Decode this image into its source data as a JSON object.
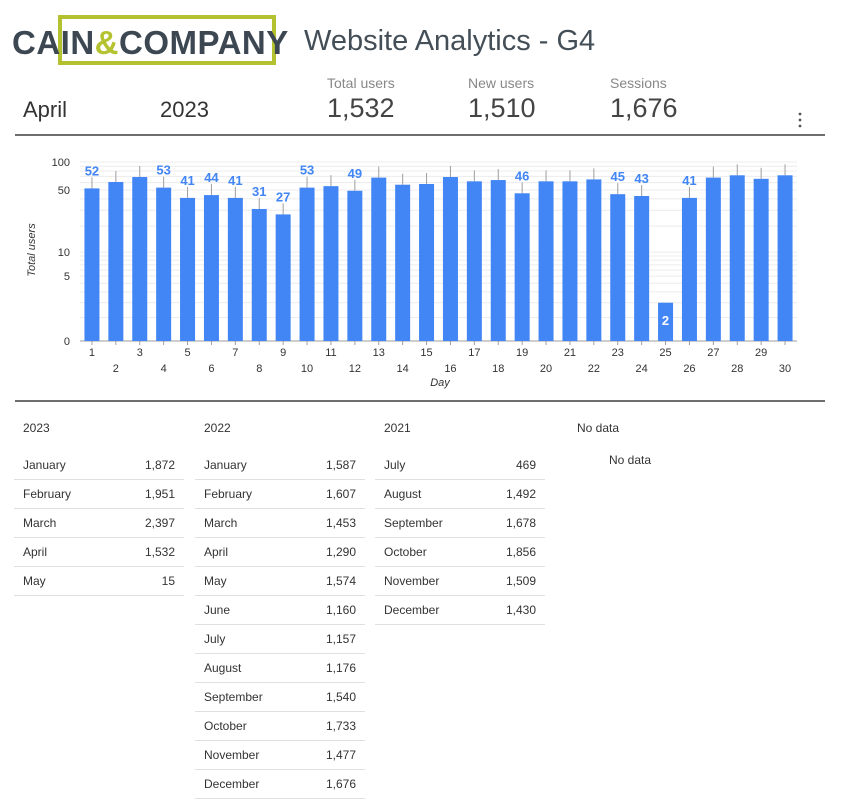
{
  "header": {
    "logo": {
      "part1": "CAIN",
      "amp": "&",
      "part2": "COMPANY"
    },
    "title": "Website Analytics - G4",
    "month": "April",
    "year": "2023"
  },
  "kpis": [
    {
      "label": "Total users",
      "value": "1,532"
    },
    {
      "label": "New users",
      "value": "1,510"
    },
    {
      "label": "Sessions",
      "value": "1,676"
    }
  ],
  "colors": {
    "bar": "#4285f4",
    "label": "#4285f4",
    "logo_green": "#b5c230"
  },
  "chart_data": {
    "type": "bar",
    "xlabel": "Day",
    "ylabel": "Total users",
    "scale": "symlog",
    "yticks": [
      "0",
      "5",
      "10",
      "50",
      "100"
    ],
    "ylim": [
      0,
      100
    ],
    "categories": [
      "1",
      "2",
      "3",
      "4",
      "5",
      "6",
      "7",
      "8",
      "9",
      "10",
      "11",
      "12",
      "13",
      "14",
      "15",
      "16",
      "17",
      "18",
      "19",
      "20",
      "21",
      "22",
      "23",
      "24",
      "25",
      "26",
      "27",
      "28",
      "29",
      "30"
    ],
    "values": [
      52,
      61,
      69,
      53,
      41,
      44,
      41,
      31,
      27,
      53,
      55,
      49,
      68,
      57,
      58,
      69,
      62,
      64,
      46,
      62,
      62,
      65,
      45,
      43,
      2,
      41,
      68,
      72,
      66,
      72
    ],
    "labeled_days": [
      "1",
      "4",
      "5",
      "6",
      "7",
      "8",
      "9",
      "10",
      "12",
      "19",
      "23",
      "24",
      "25",
      "26"
    ],
    "legend": "none"
  },
  "tables": [
    {
      "header": "2023",
      "rows": [
        {
          "month": "January",
          "value": "1,872"
        },
        {
          "month": "February",
          "value": "1,951"
        },
        {
          "month": "March",
          "value": "2,397"
        },
        {
          "month": "April",
          "value": "1,532"
        },
        {
          "month": "May",
          "value": "15"
        }
      ]
    },
    {
      "header": "2022",
      "rows": [
        {
          "month": "January",
          "value": "1,587"
        },
        {
          "month": "February",
          "value": "1,607"
        },
        {
          "month": "March",
          "value": "1,453"
        },
        {
          "month": "April",
          "value": "1,290"
        },
        {
          "month": "May",
          "value": "1,574"
        },
        {
          "month": "June",
          "value": "1,160"
        },
        {
          "month": "July",
          "value": "1,157"
        },
        {
          "month": "August",
          "value": "1,176"
        },
        {
          "month": "September",
          "value": "1,540"
        },
        {
          "month": "October",
          "value": "1,733"
        },
        {
          "month": "November",
          "value": "1,477"
        },
        {
          "month": "December",
          "value": "1,676"
        }
      ]
    },
    {
      "header": "2021",
      "rows": [
        {
          "month": "July",
          "value": "469"
        },
        {
          "month": "August",
          "value": "1,492"
        },
        {
          "month": "September",
          "value": "1,678"
        },
        {
          "month": "October",
          "value": "1,856"
        },
        {
          "month": "November",
          "value": "1,509"
        },
        {
          "month": "December",
          "value": "1,430"
        }
      ]
    }
  ],
  "nodata": {
    "header": "No data",
    "body": "No data"
  }
}
